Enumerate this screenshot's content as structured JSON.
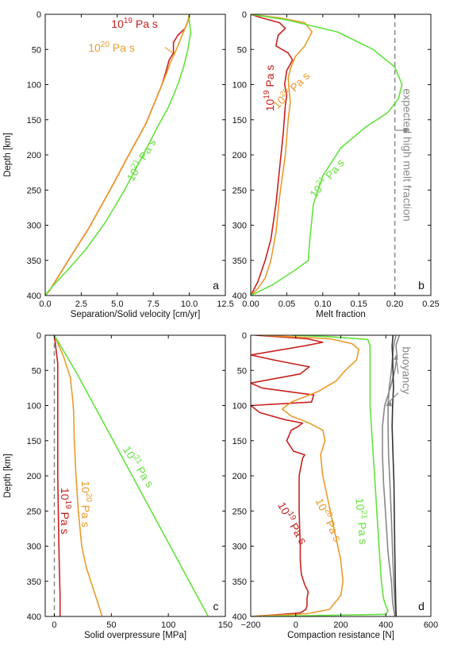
{
  "colors": {
    "visc19": "#c8221e",
    "visc20": "#ec9a2a",
    "visc21": "#63e23c",
    "gray": "#888888",
    "dark": "#333333"
  },
  "chart_data": [
    {
      "id": "a",
      "type": "line",
      "panel_label": "a",
      "xlabel": "Separation/Solid velocity [cm/yr]",
      "ylabel": "Depth [km]",
      "xlim": [
        0,
        12.5
      ],
      "ylim": [
        400,
        0
      ],
      "xticks": [
        0,
        2.5,
        5,
        7.5,
        10,
        12.5
      ],
      "xtick_labels": [
        "0.0",
        "2.5",
        "5.0",
        "7.5",
        "10.0",
        "12.5"
      ],
      "yticks": [
        0,
        50,
        100,
        150,
        200,
        250,
        300,
        350,
        400
      ],
      "series": [
        {
          "name": "10^19 Pa s",
          "color_key": "visc19",
          "x": [
            10,
            9.9,
            9.7,
            9.2,
            8.9,
            8.9,
            8.6,
            8.4,
            8.1,
            7.5,
            7.0,
            5.8,
            4.5,
            3.0,
            1.6,
            0.3,
            0
          ],
          "y": [
            0,
            10,
            20,
            30,
            40,
            55,
            65,
            80,
            100,
            130,
            155,
            200,
            250,
            305,
            350,
            393,
            400
          ]
        },
        {
          "name": "10^20 Pa s",
          "color_key": "visc20",
          "x": [
            10,
            9.9,
            9.6,
            9.3,
            9.0,
            8.7,
            8.4,
            8.1,
            7.5,
            7.0,
            5.8,
            4.5,
            3.0,
            1.6,
            0.3,
            0
          ],
          "y": [
            0,
            10,
            25,
            40,
            55,
            68,
            85,
            100,
            130,
            155,
            200,
            250,
            305,
            350,
            393,
            400
          ]
        },
        {
          "name": "10^21 Pa s",
          "color_key": "visc21",
          "x": [
            10,
            10,
            10.1,
            9.9,
            9.6,
            9.2,
            8.6,
            7.8,
            6.8,
            5.5,
            4.2,
            2.8,
            1.5,
            0.5,
            0.1,
            0
          ],
          "y": [
            0,
            10,
            25,
            50,
            75,
            100,
            130,
            160,
            200,
            250,
            295,
            335,
            365,
            387,
            397,
            400
          ]
        }
      ],
      "annotations": [
        {
          "base": "10",
          "exp": "19",
          "unit": " Pa s",
          "color_key": "visc19",
          "x": 6.2,
          "y": 19,
          "rotate": 0
        },
        {
          "base": "10",
          "exp": "20",
          "unit": " Pa s",
          "color_key": "visc20",
          "x": 4.6,
          "y": 53,
          "rotate": 0
        },
        {
          "base": "10",
          "exp": "21",
          "unit": " Pa s",
          "color_key": "visc21",
          "x": 6.9,
          "y": 210,
          "rotate": -60
        }
      ]
    },
    {
      "id": "b",
      "type": "line",
      "panel_label": "b",
      "xlabel": "Melt fraction",
      "ylabel": "",
      "xlim": [
        0,
        0.25
      ],
      "ylim": [
        400,
        0
      ],
      "xticks": [
        0,
        0.05,
        0.1,
        0.15,
        0.2,
        0.25
      ],
      "xtick_labels": [
        "0.00",
        "0.05",
        "0.10",
        "0.15",
        "0.20",
        "0.25"
      ],
      "yticks": [
        0,
        50,
        100,
        150,
        200,
        250,
        300,
        350,
        400
      ],
      "series": [
        {
          "name": "10^19 Pa s",
          "color_key": "visc19",
          "x": [
            0.0,
            0.015,
            0.04,
            0.048,
            0.038,
            0.035,
            0.052,
            0.058,
            0.05,
            0.047,
            0.05,
            0.048,
            0.045,
            0.04,
            0.035,
            0.028,
            0.02,
            0.01,
            0.0
          ],
          "y": [
            0,
            5,
            12,
            20,
            30,
            45,
            55,
            65,
            80,
            100,
            115,
            130,
            170,
            220,
            270,
            320,
            350,
            380,
            400
          ]
        },
        {
          "name": "10^20 Pa s",
          "color_key": "visc20",
          "x": [
            0.0,
            0.04,
            0.075,
            0.085,
            0.075,
            0.062,
            0.056,
            0.052,
            0.053,
            0.055,
            0.052,
            0.048,
            0.04,
            0.035,
            0.028,
            0.02,
            0.01,
            0.0
          ],
          "y": [
            0,
            5,
            12,
            25,
            45,
            60,
            75,
            90,
            105,
            125,
            150,
            200,
            260,
            310,
            350,
            375,
            390,
            400
          ]
        },
        {
          "name": "10^21 Pa s",
          "color_key": "visc21",
          "x": [
            0.0,
            0.05,
            0.12,
            0.17,
            0.2,
            0.21,
            0.205,
            0.19,
            0.16,
            0.125,
            0.1,
            0.087,
            0.082,
            0.08,
            0.06,
            0.03,
            0.0
          ],
          "y": [
            0,
            8,
            25,
            50,
            75,
            100,
            120,
            140,
            160,
            190,
            230,
            270,
            320,
            350,
            365,
            385,
            400
          ]
        }
      ],
      "reference_line": {
        "x": 0.2,
        "label": "expected high melt fraction",
        "color_key": "gray"
      },
      "annotations": [
        {
          "base": "10",
          "exp": "19",
          "unit": " Pa s",
          "color_key": "visc19",
          "x": 0.032,
          "y": 105,
          "rotate": -90
        },
        {
          "base": "10",
          "exp": "20",
          "unit": " Pa s",
          "color_key": "visc20",
          "x": 0.06,
          "y": 112,
          "rotate": -45
        },
        {
          "base": "10",
          "exp": "21",
          "unit": " Pa s",
          "color_key": "visc21",
          "x": 0.11,
          "y": 237,
          "rotate": -50
        }
      ]
    },
    {
      "id": "c",
      "type": "line",
      "panel_label": "c",
      "xlabel": "Solid overpressure [MPa]",
      "ylabel": "Depth [km]",
      "xlim": [
        -8,
        150
      ],
      "ylim": [
        400,
        0
      ],
      "xticks": [
        0,
        50,
        100,
        150
      ],
      "xtick_labels": [
        "0",
        "50",
        "100",
        "150"
      ],
      "yticks": [
        0,
        50,
        100,
        150,
        200,
        250,
        300,
        350,
        400
      ],
      "series": [
        {
          "name": "10^19 Pa s",
          "color_key": "visc19",
          "x": [
            0,
            1.5,
            3,
            3,
            3,
            3,
            3,
            3.5,
            4,
            4.5,
            5,
            5,
            5
          ],
          "y": [
            0,
            20,
            40,
            70,
            100,
            150,
            200,
            250,
            300,
            340,
            370,
            390,
            400
          ]
        },
        {
          "name": "10^20 Pa s",
          "color_key": "visc20",
          "x": [
            0,
            8,
            14,
            16,
            17,
            17.5,
            19,
            21,
            24,
            28,
            33,
            38,
            42
          ],
          "y": [
            0,
            30,
            60,
            90,
            110,
            150,
            200,
            250,
            300,
            330,
            355,
            380,
            400
          ]
        },
        {
          "name": "10^21 Pa s",
          "color_key": "visc21",
          "x": [
            0,
            20,
            40,
            60,
            80,
            100,
            120,
            135
          ],
          "y": [
            0,
            55,
            115,
            175,
            235,
            295,
            355,
            400
          ]
        }
      ],
      "reference_line": {
        "x": 0,
        "label": "",
        "color_key": "gray"
      },
      "annotations": [
        {
          "base": "10",
          "exp": "19",
          "unit": " Pa s",
          "color_key": "visc19",
          "x": 6,
          "y": 250,
          "rotate": 90
        },
        {
          "base": "10",
          "exp": "20",
          "unit": " Pa s",
          "color_key": "visc20",
          "x": 24,
          "y": 240,
          "rotate": 90
        },
        {
          "base": "10",
          "exp": "21",
          "unit": " Pa s",
          "color_key": "visc21",
          "x": 71,
          "y": 190,
          "rotate": 57
        }
      ]
    },
    {
      "id": "d",
      "type": "line",
      "panel_label": "d",
      "xlabel": "Compaction resistance [N]",
      "ylabel": "",
      "xlim": [
        -200,
        600
      ],
      "ylim": [
        400,
        0
      ],
      "xticks": [
        -200,
        0,
        200,
        400,
        600
      ],
      "xtick_labels": [
        "−200",
        "0",
        "200",
        "400",
        "600"
      ],
      "yticks": [
        0,
        50,
        100,
        150,
        200,
        250,
        300,
        350,
        400
      ],
      "series": [
        {
          "name": "10^19 Pa s",
          "color_key": "visc19",
          "x": [
            -180,
            50,
            120,
            40,
            -200,
            -100,
            60,
            20,
            -200,
            -150,
            80,
            70,
            -200,
            -160,
            -50,
            30,
            10,
            -20,
            -40,
            -10,
            40,
            30,
            15,
            15,
            20,
            20,
            25,
            40,
            55,
            50,
            50,
            45,
            20,
            -100,
            -200
          ],
          "y": [
            0,
            5,
            10,
            15,
            28,
            35,
            45,
            55,
            68,
            75,
            85,
            95,
            100,
            110,
            120,
            125,
            130,
            135,
            150,
            165,
            170,
            175,
            200,
            250,
            300,
            320,
            340,
            355,
            365,
            375,
            385,
            390,
            395,
            398,
            400
          ]
        },
        {
          "name": "10^20 Pa s",
          "color_key": "visc20",
          "x": [
            -150,
            150,
            250,
            280,
            270,
            220,
            180,
            100,
            -20,
            -60,
            -20,
            60,
            120,
            130,
            110,
            120,
            140,
            160,
            180,
            200,
            210,
            200,
            150,
            50,
            -200
          ],
          "y": [
            0,
            5,
            12,
            20,
            35,
            50,
            65,
            80,
            95,
            105,
            115,
            125,
            135,
            150,
            170,
            200,
            230,
            260,
            290,
            320,
            350,
            370,
            390,
            396,
            400
          ]
        },
        {
          "name": "10^21 Pa s",
          "color_key": "visc21",
          "x": [
            -20,
            150,
            320,
            330,
            330,
            330,
            340,
            350,
            360,
            370,
            380,
            390,
            400,
            410,
            400,
            -150
          ],
          "y": [
            0,
            2,
            6,
            15,
            50,
            100,
            150,
            200,
            250,
            300,
            350,
            375,
            385,
            392,
            397,
            400
          ]
        },
        {
          "name": "gray-1",
          "color_key": "gray",
          "x": [
            460,
            445,
            450,
            440,
            420,
            395,
            385,
            385,
            390,
            400,
            410,
            425,
            430,
            440
          ],
          "y": [
            0,
            15,
            30,
            50,
            75,
            100,
            130,
            170,
            210,
            260,
            310,
            350,
            380,
            400
          ]
        },
        {
          "name": "gray-2",
          "color_key": "gray",
          "x": [
            445,
            435,
            430,
            425,
            415,
            410,
            410,
            412,
            418,
            425,
            430,
            435,
            440,
            445
          ],
          "y": [
            0,
            15,
            30,
            50,
            75,
            100,
            130,
            170,
            210,
            260,
            310,
            350,
            380,
            400
          ]
        },
        {
          "name": "dark-1",
          "color_key": "dark",
          "x": [
            432,
            428,
            430,
            432,
            434,
            430,
            428,
            432,
            436,
            438,
            440,
            442,
            444,
            446
          ],
          "y": [
            0,
            15,
            30,
            50,
            75,
            100,
            130,
            170,
            210,
            260,
            310,
            350,
            380,
            400
          ]
        }
      ],
      "annotations": [
        {
          "base": "10",
          "exp": "19",
          "unit": " Pa s",
          "color_key": "visc19",
          "x": -30,
          "y": 270,
          "rotate": 60
        },
        {
          "base": "10",
          "exp": "20",
          "unit": " Pa s",
          "color_key": "visc20",
          "x": 130,
          "y": 265,
          "rotate": 65
        },
        {
          "base": "10",
          "exp": "21",
          "unit": " Pa s",
          "color_key": "visc21",
          "x": 275,
          "y": 265,
          "rotate": 85
        },
        {
          "base": "",
          "exp": "",
          "unit": "buoyancy",
          "color_key": "gray",
          "x": 475,
          "y": 50,
          "rotate": 90
        }
      ]
    }
  ]
}
